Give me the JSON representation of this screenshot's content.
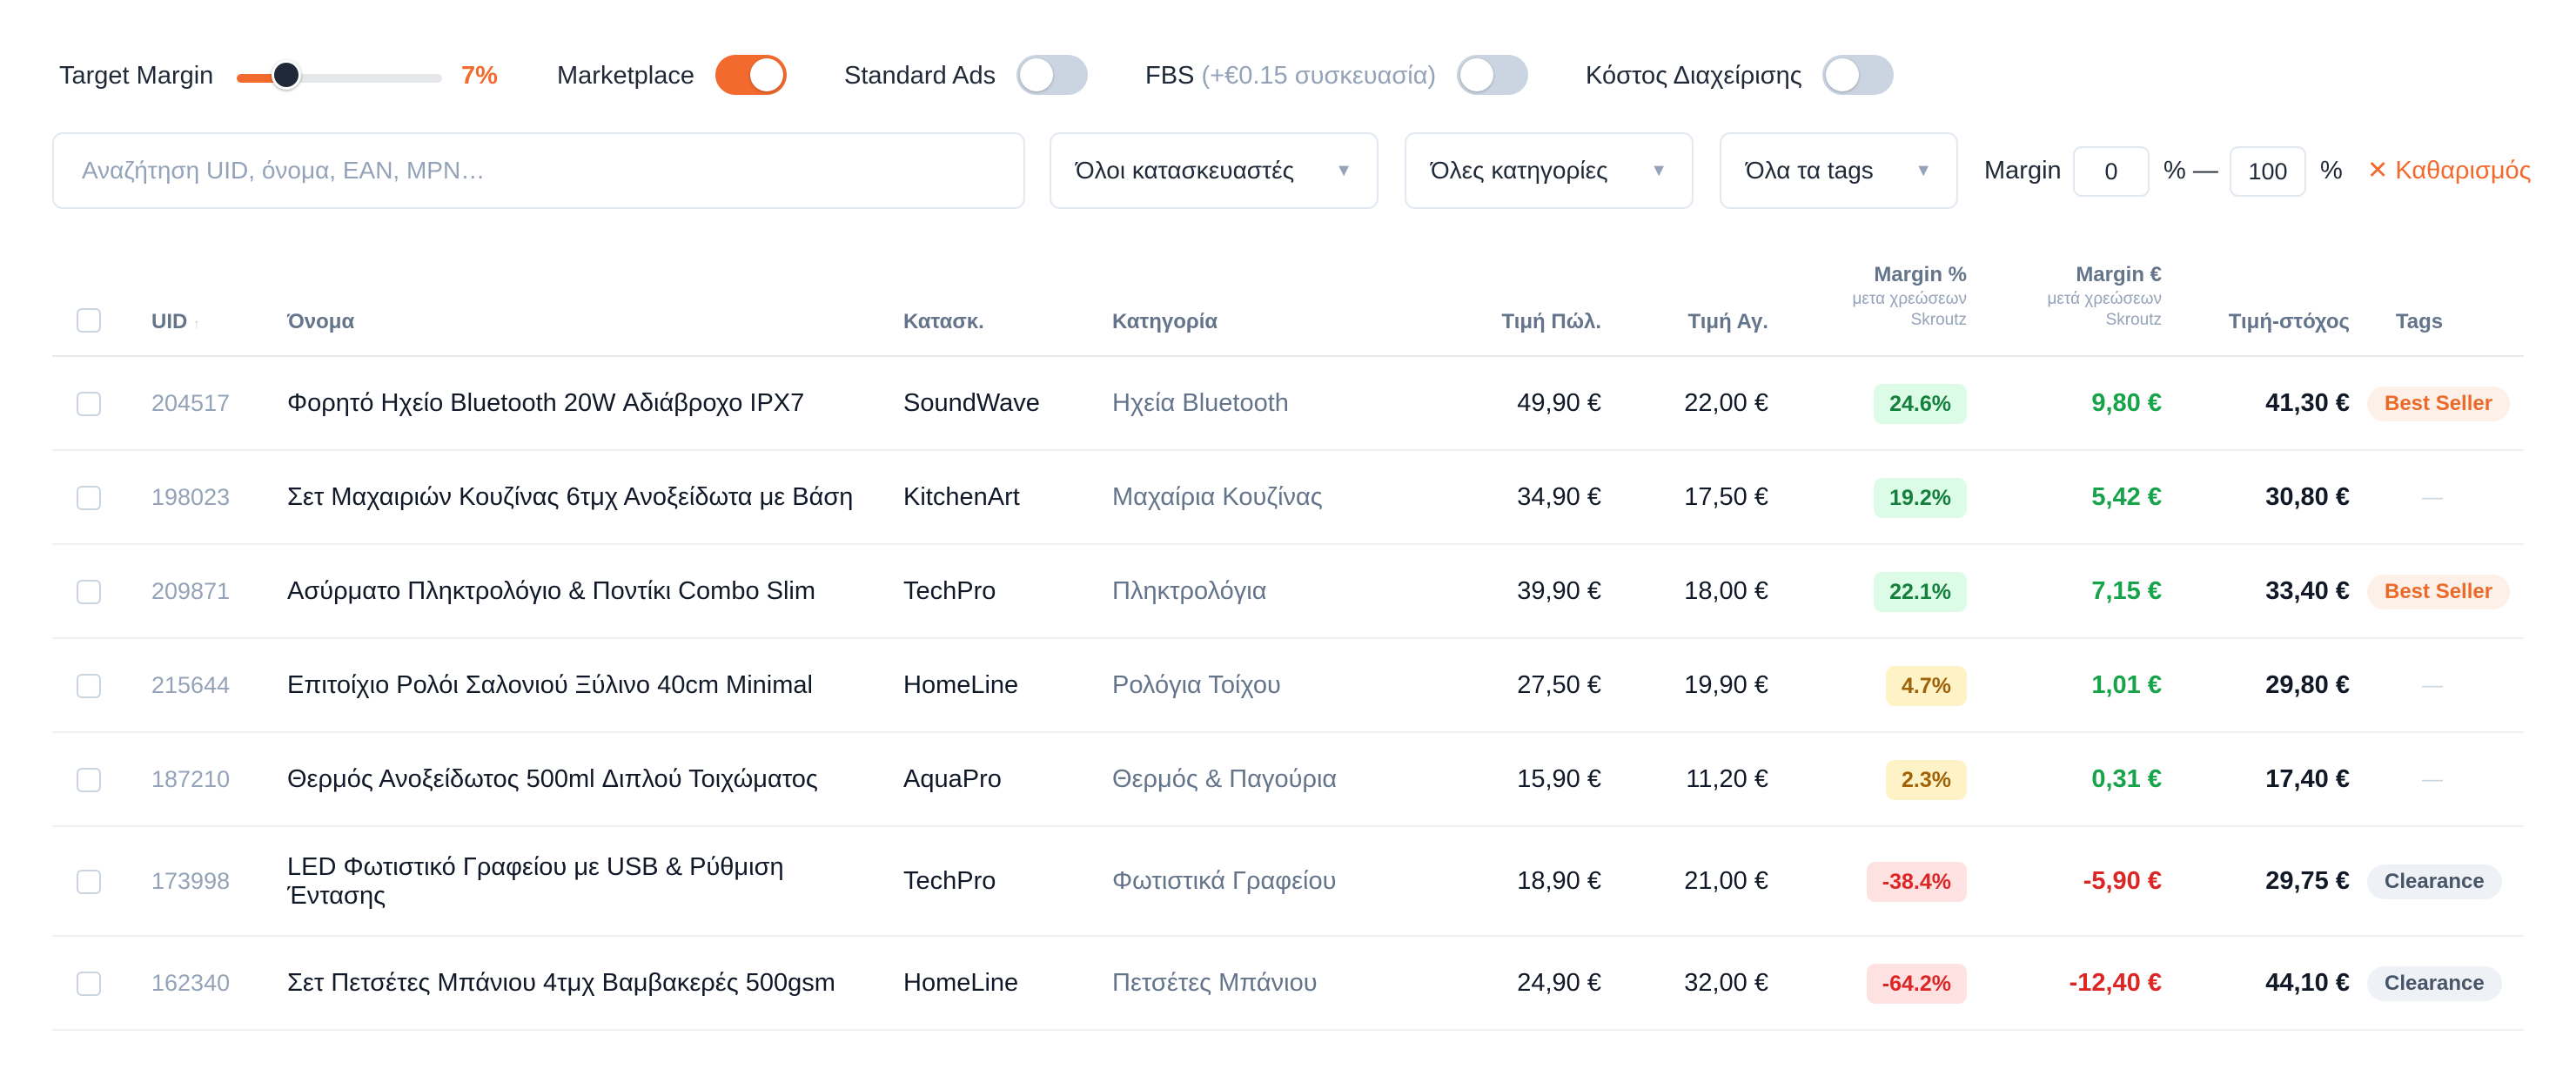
{
  "controls": {
    "target_margin_label": "Target Margin",
    "target_margin_value": "7%",
    "target_margin_fraction": 0.24,
    "marketplace_label": "Marketplace",
    "marketplace_on": true,
    "standard_ads_label": "Standard Ads",
    "standard_ads_on": false,
    "fbs_label": "FBS",
    "fbs_note": "(+€0.15 συσκευασία)",
    "fbs_on": false,
    "handling_cost_label": "Κόστος Διαχείρισης",
    "handling_cost_on": false
  },
  "filters": {
    "search_placeholder": "Αναζήτηση UID, όνομα, EAN, MPN…",
    "manufacturer": "Όλοι κατασκευαστές",
    "category": "Όλες κατηγορίες",
    "tags": "Όλα τα tags",
    "margin_label": "Margin",
    "margin_min": "0",
    "margin_sep": "% —",
    "margin_max": "100",
    "margin_unit": "%",
    "clear_label": "✕ Καθαρισμός"
  },
  "table": {
    "headers": {
      "uid": "UID",
      "uid_sort": "↑",
      "name": "Όνομα",
      "manufacturer": "Κατασκ.",
      "category": "Κατηγορία",
      "sale_price": "Τιμή Πώλ.",
      "buy_price": "Τιμή Αγ.",
      "margin_pct": "Margin %",
      "margin_pct_sub1": "μετα χρεώσεων",
      "margin_pct_sub2": "Skroutz",
      "margin_eur": "Margin €",
      "margin_eur_sub1": "μετά χρεώσεων",
      "margin_eur_sub2": "Skroutz",
      "target_price": "Τιμή-στόχος",
      "tags": "Tags"
    },
    "rows": [
      {
        "uid": "204517",
        "name": "Φορητό Ηχείο Bluetooth 20W Αδιάβροχο IPX7",
        "manufacturer": "SoundWave",
        "category": "Ηχεία Bluetooth",
        "sale_price": "49,90 €",
        "buy_price": "22,00 €",
        "margin_pct": "24.6%",
        "margin_level": "green",
        "margin_eur": "9,80 €",
        "margin_sign": "pos",
        "target_price": "41,30 €",
        "tag": "Best Seller",
        "tag_type": "best"
      },
      {
        "uid": "198023",
        "name": "Σετ Μαχαιριών Κουζίνας 6τμχ Ανοξείδωτα με Βάση",
        "manufacturer": "KitchenArt",
        "category": "Μαχαίρια Κουζίνας",
        "sale_price": "34,90 €",
        "buy_price": "17,50 €",
        "margin_pct": "19.2%",
        "margin_level": "green",
        "margin_eur": "5,42 €",
        "margin_sign": "pos",
        "target_price": "30,80 €",
        "tag": "—",
        "tag_type": "none"
      },
      {
        "uid": "209871",
        "name": "Ασύρματο Πληκτρολόγιο & Ποντίκι Combo Slim",
        "manufacturer": "TechPro",
        "category": "Πληκτρολόγια",
        "sale_price": "39,90 €",
        "buy_price": "18,00 €",
        "margin_pct": "22.1%",
        "margin_level": "green",
        "margin_eur": "7,15 €",
        "margin_sign": "pos",
        "target_price": "33,40 €",
        "tag": "Best Seller",
        "tag_type": "best"
      },
      {
        "uid": "215644",
        "name": "Επιτοίχιο Ρολόι Σαλονιού Ξύλινο 40cm Minimal",
        "manufacturer": "HomeLine",
        "category": "Ρολόγια Τοίχου",
        "sale_price": "27,50 €",
        "buy_price": "19,90 €",
        "margin_pct": "4.7%",
        "margin_level": "yellow",
        "margin_eur": "1,01 €",
        "margin_sign": "pos",
        "target_price": "29,80 €",
        "tag": "—",
        "tag_type": "none"
      },
      {
        "uid": "187210",
        "name": "Θερμός Ανοξείδωτος 500ml Διπλού Τοιχώματος",
        "manufacturer": "AquaPro",
        "category": "Θερμός & Παγούρια",
        "sale_price": "15,90 €",
        "buy_price": "11,20 €",
        "margin_pct": "2.3%",
        "margin_level": "yellow",
        "margin_eur": "0,31 €",
        "margin_sign": "pos",
        "target_price": "17,40 €",
        "tag": "—",
        "tag_type": "none"
      },
      {
        "uid": "173998",
        "name": "LED Φωτιστικό Γραφείου με USB & Ρύθμιση Έντασης",
        "manufacturer": "TechPro",
        "category": "Φωτιστικά Γραφείου",
        "sale_price": "18,90 €",
        "buy_price": "21,00 €",
        "margin_pct": "-38.4%",
        "margin_level": "red",
        "margin_eur": "-5,90 €",
        "margin_sign": "neg",
        "target_price": "29,75 €",
        "tag": "Clearance",
        "tag_type": "clear"
      },
      {
        "uid": "162340",
        "name": "Σετ Πετσέτες Μπάνιου 4τμχ Βαμβακερές 500gsm",
        "manufacturer": "HomeLine",
        "category": "Πετσέτες Μπάνιου",
        "sale_price": "24,90 €",
        "buy_price": "32,00 €",
        "margin_pct": "-64.2%",
        "margin_level": "red",
        "margin_eur": "-12,40 €",
        "margin_sign": "neg",
        "target_price": "44,10 €",
        "tag": "Clearance",
        "tag_type": "clear"
      }
    ]
  },
  "colors": {
    "accent": "#f26a2e",
    "positive": "#16a34a",
    "negative": "#dc2626",
    "muted": "#94a3b8"
  }
}
